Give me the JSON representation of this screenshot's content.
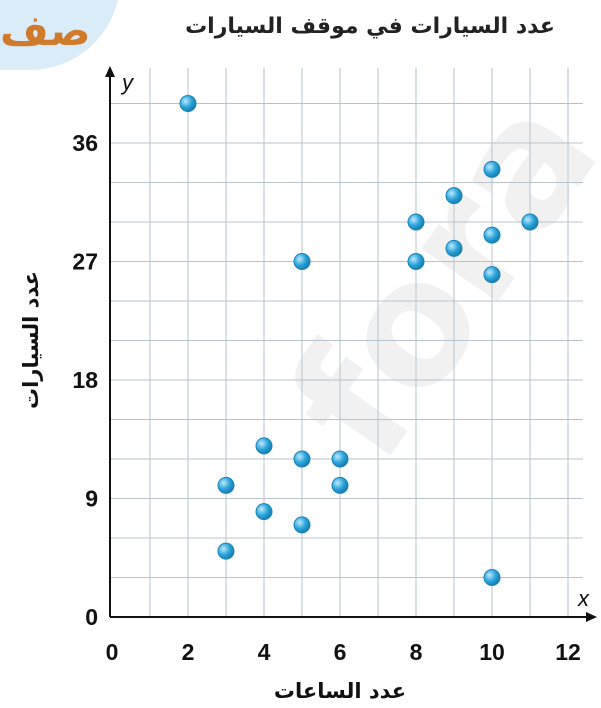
{
  "corner_text": "صف",
  "chart_data": {
    "type": "scatter",
    "title": "عدد السيارات في موقف السيارات",
    "xlabel": "عدد الساعات",
    "ylabel": "عدد السيارات",
    "x_var": "x",
    "y_var": "y",
    "xlim": [
      0,
      12.5
    ],
    "ylim": [
      0,
      40
    ],
    "xticks": [
      0,
      2,
      4,
      6,
      8,
      10,
      12
    ],
    "yticks": [
      0,
      9,
      18,
      27,
      36
    ],
    "grid": true,
    "point_color": "#2aa5dc",
    "points": [
      {
        "x": 2,
        "y": 39
      },
      {
        "x": 3,
        "y": 10
      },
      {
        "x": 3,
        "y": 5
      },
      {
        "x": 4,
        "y": 13
      },
      {
        "x": 4,
        "y": 8
      },
      {
        "x": 5,
        "y": 12
      },
      {
        "x": 5,
        "y": 7
      },
      {
        "x": 5,
        "y": 27
      },
      {
        "x": 6,
        "y": 12
      },
      {
        "x": 6,
        "y": 10
      },
      {
        "x": 8,
        "y": 30
      },
      {
        "x": 8,
        "y": 27
      },
      {
        "x": 9,
        "y": 32
      },
      {
        "x": 9,
        "y": 28
      },
      {
        "x": 10,
        "y": 34
      },
      {
        "x": 10,
        "y": 29
      },
      {
        "x": 10,
        "y": 26
      },
      {
        "x": 10,
        "y": 3
      },
      {
        "x": 11,
        "y": 30
      }
    ]
  }
}
